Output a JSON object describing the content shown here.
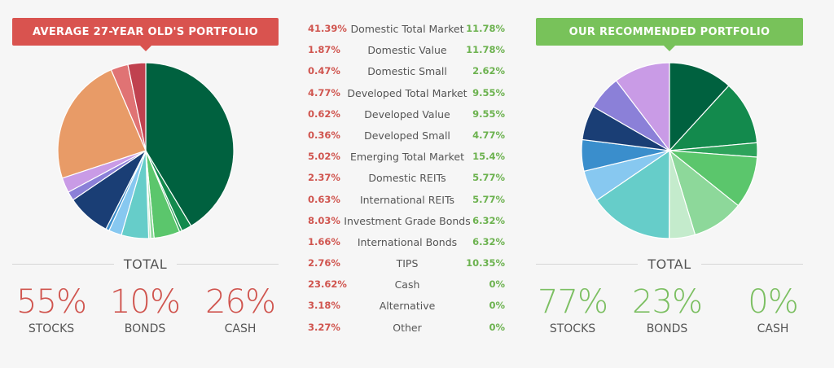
{
  "left": {
    "banner": "AVERAGE 27-YEAR OLD'S PORTFOLIO",
    "total_label": "TOTAL",
    "stats": [
      {
        "value": "55%",
        "label": "STOCKS"
      },
      {
        "value": "10%",
        "label": "BONDS"
      },
      {
        "value": "26%",
        "label": "CASH"
      }
    ]
  },
  "right": {
    "banner": "OUR RECOMMENDED PORTFOLIO",
    "total_label": "TOTAL",
    "stats": [
      {
        "value": "77%",
        "label": "STOCKS"
      },
      {
        "value": "23%",
        "label": "BONDS"
      },
      {
        "value": "0%",
        "label": "CASH"
      }
    ]
  },
  "table": {
    "rows": [
      {
        "name": "Domestic Total Market",
        "left": "41.39%",
        "right": "11.78%"
      },
      {
        "name": "Domestic Value",
        "left": "1.87%",
        "right": "11.78%"
      },
      {
        "name": "Domestic Small",
        "left": "0.47%",
        "right": "2.62%"
      },
      {
        "name": "Developed Total Market",
        "left": "4.77%",
        "right": "9.55%"
      },
      {
        "name": "Developed Value",
        "left": "0.62%",
        "right": "9.55%"
      },
      {
        "name": "Developed Small",
        "left": "0.36%",
        "right": "4.77%"
      },
      {
        "name": "Emerging Total Market",
        "left": "5.02%",
        "right": "15.4%"
      },
      {
        "name": "Domestic REITs",
        "left": "2.37%",
        "right": "5.77%"
      },
      {
        "name": "International REITs",
        "left": "0.63%",
        "right": "5.77%"
      },
      {
        "name": "Investment Grade Bonds",
        "left": "8.03%",
        "right": "6.32%"
      },
      {
        "name": "International Bonds",
        "left": "1.66%",
        "right": "6.32%"
      },
      {
        "name": "TIPS",
        "left": "2.76%",
        "right": "10.35%"
      },
      {
        "name": "Cash",
        "left": "23.62%",
        "right": "0%"
      },
      {
        "name": "Alternative",
        "left": "3.18%",
        "right": "0%"
      },
      {
        "name": "Other",
        "left": "3.27%",
        "right": "0%"
      }
    ]
  },
  "chart_data": [
    {
      "type": "pie",
      "title": "AVERAGE 27-YEAR OLD'S PORTFOLIO",
      "categories": [
        "Domestic Total Market",
        "Domestic Value",
        "Domestic Small",
        "Developed Total Market",
        "Developed Value",
        "Developed Small",
        "Emerging Total Market",
        "Domestic REITs",
        "International REITs",
        "Investment Grade Bonds",
        "International Bonds",
        "TIPS",
        "Cash",
        "Alternative",
        "Other"
      ],
      "values": [
        41.39,
        1.87,
        0.47,
        4.77,
        0.62,
        0.36,
        5.02,
        2.37,
        0.63,
        8.03,
        1.66,
        2.76,
        23.62,
        3.18,
        3.27
      ],
      "colors": [
        "#00613f",
        "#138a4d",
        "#2ea35b",
        "#5bc66c",
        "#8dd89a",
        "#c4ebcc",
        "#66cdc9",
        "#87c8f0",
        "#3a8ecc",
        "#1a3e75",
        "#8b80d8",
        "#c99be6",
        "#e89b67",
        "#e07374",
        "#c0414f"
      ]
    },
    {
      "type": "pie",
      "title": "OUR RECOMMENDED PORTFOLIO",
      "categories": [
        "Domestic Total Market",
        "Domestic Value",
        "Domestic Small",
        "Developed Total Market",
        "Developed Value",
        "Developed Small",
        "Emerging Total Market",
        "Domestic REITs",
        "International REITs",
        "Investment Grade Bonds",
        "International Bonds",
        "TIPS",
        "Cash",
        "Alternative",
        "Other"
      ],
      "values": [
        11.78,
        11.78,
        2.62,
        9.55,
        9.55,
        4.77,
        15.4,
        5.77,
        5.77,
        6.32,
        6.32,
        10.35,
        0,
        0,
        0
      ],
      "colors": [
        "#00613f",
        "#138a4d",
        "#2ea35b",
        "#5bc66c",
        "#8dd89a",
        "#c4ebcc",
        "#66cdc9",
        "#87c8f0",
        "#3a8ecc",
        "#1a3e75",
        "#8b80d8",
        "#c99be6",
        "#e89b67",
        "#e07374",
        "#c0414f"
      ]
    }
  ]
}
